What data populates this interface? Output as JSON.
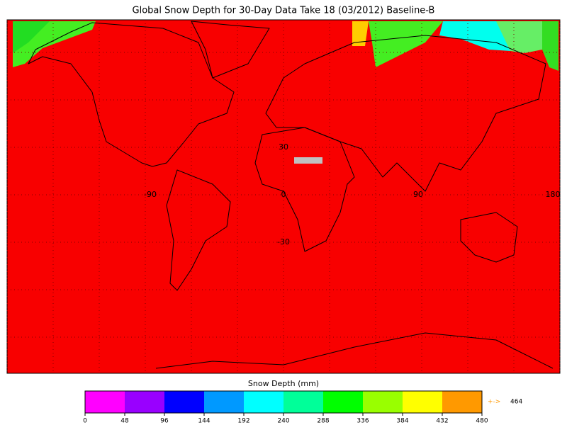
{
  "title": "Global Snow Depth for 30-Day Data Take 18 (03/2012) Baseline-B",
  "map": {
    "background_color": "#f80000",
    "lat_labels": [
      "30",
      "-30"
    ],
    "lon_labels": [
      "-90",
      "0",
      "90",
      "180"
    ]
  },
  "legend": {
    "title": "Snow Depth (mm)",
    "ticks": [
      0,
      48,
      96,
      144,
      192,
      240,
      288,
      336,
      384,
      432,
      480
    ],
    "colors": [
      "#ff00ff",
      "#9900ff",
      "#0000ff",
      "#0099ff",
      "#00ffff",
      "#00ff99",
      "#00ff00",
      "#99ff00",
      "#ffff00",
      "#ff9900"
    ],
    "overflow_arrow": "+->",
    "overflow_value": 464
  }
}
